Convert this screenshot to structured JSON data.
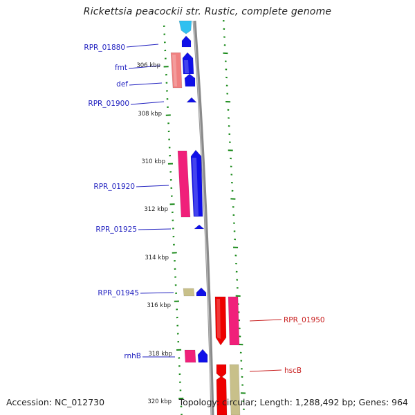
{
  "title": "Rickettsia peacockii str. Rustic, complete genome",
  "footer": {
    "accession": "Accession: NC_012730",
    "summary": "Topology: circular; Length: 1,288,492 bp; Genes: 964"
  },
  "colors": {
    "tick": "#1a8a1a",
    "backbone": "#8a8a8a",
    "forward_label": "#1f1fbf",
    "reverse_label": "#c81e1e",
    "gene_blue": "#1010e8",
    "gene_pink": "#f0207a",
    "gene_salmon": "#f08080",
    "gene_red": "#ee0000",
    "gene_khaki": "#c8c08a",
    "gene_cyan": "#30c0f0"
  },
  "ruler_labels": [
    "306 kbp",
    "308 kbp",
    "310 kbp",
    "312 kbp",
    "314 kbp",
    "316 kbp",
    "318 kbp",
    "320 kbp"
  ],
  "gene_labels_forward": [
    "RPR_01880",
    "fmt",
    "def",
    "RPR_01900",
    "RPR_01920",
    "RPR_01925",
    "RPR_01945",
    "rnhB"
  ],
  "gene_labels_reverse": [
    "RPR_01950",
    "hscB"
  ]
}
